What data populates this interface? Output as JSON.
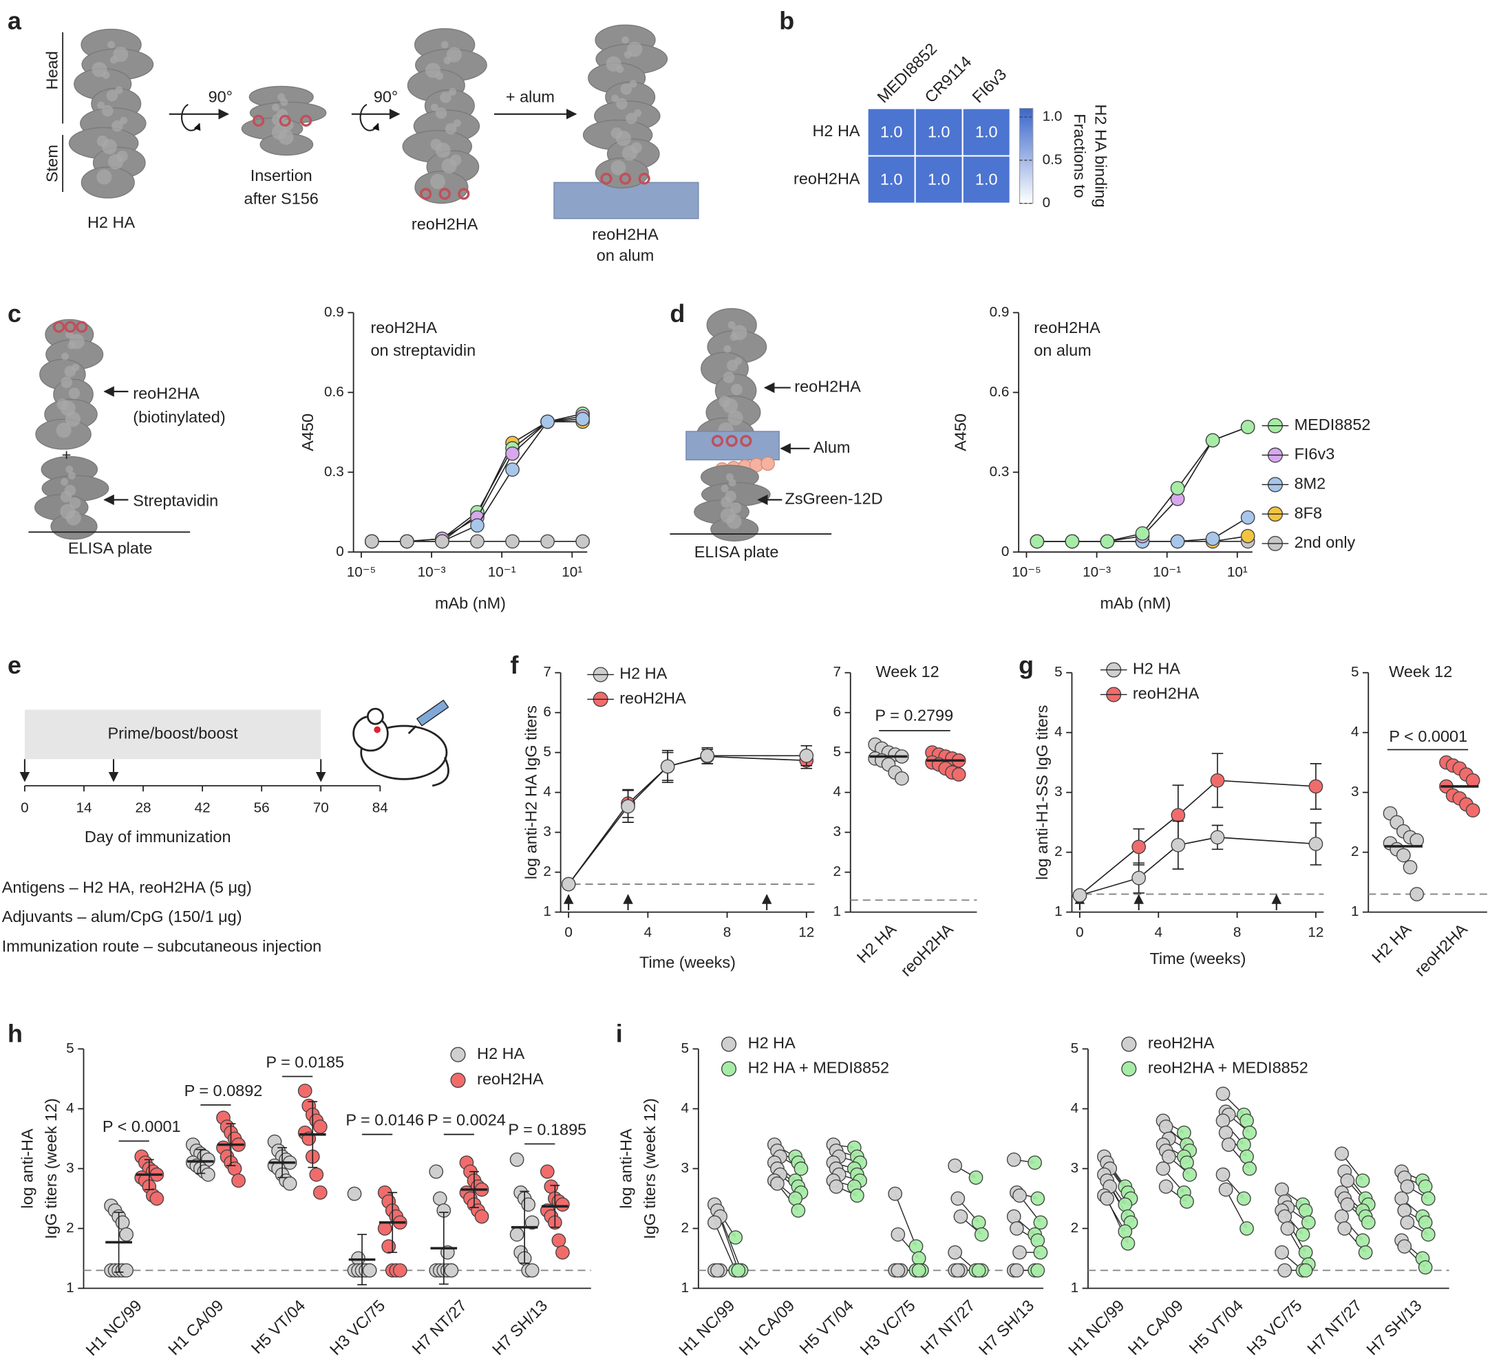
{
  "panel_labels": [
    "a",
    "b",
    "c",
    "d",
    "e",
    "f",
    "g",
    "h",
    "i"
  ],
  "panel_a": {
    "head": "Head",
    "stem": "Stem",
    "rotations": [
      "90°",
      "90°"
    ],
    "step": "+ alum",
    "captions": [
      [
        "H2 HA"
      ],
      [
        "Insertion",
        "after S156"
      ],
      [
        "reoH2HA"
      ],
      [
        "reoH2HA",
        "on alum"
      ]
    ]
  },
  "panel_c": {
    "protein": [
      "reoH2HA",
      "(biotinylated)"
    ],
    "plus": "+",
    "streptavidin": "Streptavidin",
    "plate": "ELISA plate"
  },
  "panel_d": {
    "protein": "reoH2HA",
    "alum": "Alum",
    "antibody": "ZsGreen-12D",
    "plate": "ELISA plate"
  },
  "panel_e": {
    "notes": [
      "Antigens – H2 HA, reoH2HA (5 μg)",
      "Adjuvants – alum/CpG (150/1 μg)",
      "Immunization route – subcutaneous injection"
    ]
  },
  "chart_data": [
    {
      "type": "heatmap",
      "columns": [
        "MEDI8852",
        "CR9114",
        "FI6v3"
      ],
      "rows": [
        "H2 HA",
        "reoH2HA"
      ],
      "values": [
        [
          1,
          1,
          1
        ],
        [
          1,
          1,
          1
        ]
      ],
      "value_labels": [
        [
          "1.0",
          "1.0",
          "1.0"
        ],
        [
          "1.0",
          "1.0",
          "1.0"
        ]
      ],
      "colors": [
        "#ffffff",
        "#3a66cc"
      ],
      "clim": [
        0,
        1.1
      ],
      "cticks": [
        0,
        0.5,
        {
          "value": 1,
          "label": "1.0"
        }
      ],
      "colorbar_label": [
        "Fractions to",
        "H2 HA binding"
      ]
    },
    {
      "type": "line",
      "xscale": "log",
      "annotation": [
        "reoH2HA",
        "on streptavidin"
      ],
      "xlabel": "mAb (nM)",
      "ylabel": "A450",
      "x": [
        2e-05,
        0.0002,
        0.002,
        0.02,
        0.2,
        2,
        20
      ],
      "xlim": [
        6e-06,
        27
      ],
      "xticks": [
        {
          "value": 1e-05,
          "label": "10⁻⁵"
        },
        {
          "value": 0.001,
          "label": "10⁻³"
        },
        {
          "value": 0.1,
          "label": "10⁻¹"
        },
        {
          "value": 10,
          "label": "10¹"
        }
      ],
      "ylim": [
        0,
        0.9
      ],
      "yticks": [
        0,
        0.3,
        0.6,
        0.9
      ],
      "series": [
        {
          "color": "#c8c8c8",
          "values": [
            0.04,
            0.04,
            0.04,
            0.04,
            0.04,
            0.04,
            0.04
          ]
        },
        {
          "color": "#a7c6ea",
          "values": [
            0.04,
            0.04,
            0.04,
            0.1,
            0.31,
            0.49,
            0.5
          ]
        },
        {
          "color": "#d7a8ee",
          "values": [
            0.04,
            0.04,
            0.05,
            0.13,
            0.37,
            0.49,
            0.51
          ]
        },
        {
          "color": "#a6eca6",
          "values": [
            0.04,
            0.04,
            0.05,
            0.15,
            0.39,
            0.49,
            0.52
          ]
        },
        {
          "color": "#f2c440",
          "values": [
            0.04,
            0.04,
            0.04,
            0.14,
            0.41,
            0.49,
            0.49
          ]
        }
      ]
    },
    {
      "type": "line",
      "xscale": "log",
      "annotation": [
        "reoH2HA",
        "on alum"
      ],
      "xlabel": "mAb (nM)",
      "ylabel": "A450",
      "legend": "right",
      "x": [
        2e-05,
        0.0002,
        0.002,
        0.02,
        0.2,
        2,
        20
      ],
      "xlim": [
        6e-06,
        27
      ],
      "xticks": [
        {
          "value": 1e-05,
          "label": "10⁻⁵"
        },
        {
          "value": 0.001,
          "label": "10⁻³"
        },
        {
          "value": 0.1,
          "label": "10⁻¹"
        },
        {
          "value": 10,
          "label": "10¹"
        }
      ],
      "ylim": [
        0,
        0.9
      ],
      "yticks": [
        0,
        0.3,
        0.6,
        0.9
      ],
      "series": [
        {
          "name": "MEDI8852",
          "color": "#a6eca6",
          "values": [
            0.04,
            0.04,
            0.04,
            0.07,
            0.24,
            0.42,
            0.47
          ]
        },
        {
          "name": "FI6v3",
          "color": "#d7a8ee",
          "values": [
            0.04,
            0.04,
            0.04,
            0.06,
            0.2,
            0.42,
            0.47
          ]
        },
        {
          "name": "8M2",
          "color": "#a7c6ea",
          "values": [
            0.04,
            0.04,
            0.04,
            0.04,
            0.04,
            0.05,
            0.13
          ]
        },
        {
          "name": "8F8",
          "color": "#f2c440",
          "values": [
            0.04,
            0.04,
            0.04,
            0.04,
            0.04,
            0.04,
            0.06
          ]
        },
        {
          "name": "2nd only",
          "color": "#c8c8c8",
          "values": [
            0.04,
            0.04,
            0.04,
            0.04,
            0.04,
            0.04,
            0.04
          ]
        }
      ]
    },
    {
      "type": "timeline",
      "band_label": "Prime/boost/boost",
      "xlabel": "Day of immunization",
      "xlim": [
        0,
        84
      ],
      "xticks": [
        0,
        14,
        28,
        42,
        56,
        70,
        84
      ],
      "band": [
        0,
        70
      ],
      "immunizations": [
        0,
        21,
        70
      ]
    },
    {
      "type": "line",
      "xlabel": "Time (weeks)",
      "ylabel": "log anti-H2 HA IgG titers",
      "legend": "upper left",
      "x": [
        0,
        3,
        5,
        7,
        12
      ],
      "xlim": [
        -0.4,
        12.4
      ],
      "xticks": [
        0,
        4,
        8,
        12
      ],
      "ylim": [
        1,
        7
      ],
      "yticks": [
        1,
        2,
        3,
        4,
        5,
        6,
        7
      ],
      "reference_line": 1.7,
      "immunizations": [
        0,
        3,
        10
      ],
      "series": [
        {
          "name": "H2 HA",
          "color": "#cfcfcf",
          "values": [
            1.7,
            3.65,
            4.65,
            4.92,
            4.92
          ],
          "errors": [
            0,
            0.4,
            0.4,
            0.2,
            0.25
          ]
        },
        {
          "name": "reoH2HA",
          "color": "#f26b6b",
          "values": [
            1.7,
            3.72,
            4.65,
            4.9,
            4.8
          ],
          "errors": [
            0,
            0.35,
            0.35,
            0.18,
            0.2
          ]
        }
      ]
    },
    {
      "type": "strip",
      "title": "Week 12",
      "categories": [
        "H2 HA",
        "reoH2HA"
      ],
      "colors": [
        "#cfcfcf",
        "#f26b6b"
      ],
      "values": [
        4.9,
        4.8
      ],
      "points": [
        [
          5.2,
          5.1,
          5.0,
          4.95,
          4.9,
          4.85,
          4.8,
          4.7,
          4.5,
          4.35
        ],
        [
          5.0,
          4.95,
          4.9,
          4.85,
          4.8,
          4.75,
          4.7,
          4.6,
          4.5,
          4.45
        ]
      ],
      "ylim": [
        1,
        7
      ],
      "yticks": [
        1,
        2,
        3,
        4,
        5,
        6,
        7
      ],
      "reference_line": 1.3,
      "annotation": "P = 0.2799"
    },
    {
      "type": "line",
      "xlabel": "Time (weeks)",
      "ylabel": "log anti-H1-SS IgG titers",
      "legend": "upper left",
      "x": [
        0,
        3,
        5,
        7,
        12
      ],
      "xlim": [
        -0.4,
        12.4
      ],
      "xticks": [
        0,
        4,
        8,
        12
      ],
      "ylim": [
        1,
        5
      ],
      "yticks": [
        1,
        2,
        3,
        4,
        5
      ],
      "reference_line": 1.3,
      "immunizations": [
        0,
        3,
        10
      ],
      "series": [
        {
          "name": "H2 HA",
          "color": "#cfcfcf",
          "values": [
            1.28,
            1.57,
            2.12,
            2.25,
            2.14
          ],
          "errors": [
            0,
            0.25,
            0.4,
            0.2,
            0.35
          ]
        },
        {
          "name": "reoH2HA",
          "color": "#f26b6b",
          "values": [
            1.28,
            2.09,
            2.62,
            3.2,
            3.1
          ],
          "errors": [
            0,
            0.3,
            0.5,
            0.45,
            0.38
          ]
        }
      ]
    },
    {
      "type": "strip",
      "title": "Week 12",
      "categories": [
        "H2 HA",
        "reoH2HA"
      ],
      "colors": [
        "#cfcfcf",
        "#f26b6b"
      ],
      "values": [
        2.1,
        3.1
      ],
      "points": [
        [
          2.65,
          2.5,
          2.35,
          2.25,
          2.2,
          2.15,
          2.05,
          1.95,
          1.75,
          1.3
        ],
        [
          3.5,
          3.45,
          3.4,
          3.3,
          3.2,
          3.1,
          2.95,
          2.9,
          2.8,
          2.7
        ]
      ],
      "ylim": [
        1,
        5
      ],
      "yticks": [
        1,
        2,
        3,
        4,
        5
      ],
      "reference_line": 1.3,
      "annotation": "P < 0.0001"
    },
    {
      "type": "strip",
      "ylabel": [
        "log anti-HA",
        "IgG titers (week 12)"
      ],
      "legend": "upper right",
      "categories": [
        "H1 NC/99",
        "H1 CA/09",
        "H5 VT/04",
        "H3 VC/75",
        "H7 NT/27",
        "H7 SH/13"
      ],
      "ylim": [
        1,
        5
      ],
      "yticks": [
        1,
        2,
        3,
        4,
        5
      ],
      "reference_line": 1.3,
      "annotations": [
        "P < 0.0001",
        "P = 0.0892",
        "P = 0.0185",
        "P = 0.0146",
        "P = 0.0024",
        "P = 0.1895"
      ],
      "series": [
        {
          "name": "H2 HA",
          "color": "#cfcfcf",
          "values": [
            1.77,
            3.12,
            3.1,
            1.48,
            1.67,
            2.02
          ],
          "errors": [
            0.5,
            0.2,
            0.25,
            0.42,
            0.6,
            0.6
          ],
          "points": [
            [
              2.38,
              2.3,
              2.2,
              2.1,
              1.9,
              1.3,
              1.3,
              1.3,
              1.3,
              1.3
            ],
            [
              3.4,
              3.3,
              3.25,
              3.2,
              3.15,
              3.1,
              3.05,
              3.0,
              2.95,
              2.9
            ],
            [
              3.45,
              3.3,
              3.2,
              3.15,
              3.1,
              3.05,
              3.0,
              2.9,
              2.8,
              2.75
            ],
            [
              2.58,
              1.5,
              1.3,
              1.3,
              1.3,
              1.3,
              1.3,
              1.3,
              1.3,
              1.3
            ],
            [
              2.95,
              2.5,
              2.3,
              1.6,
              1.3,
              1.3,
              1.3,
              1.3,
              1.3,
              1.3
            ],
            [
              3.15,
              2.6,
              2.5,
              2.4,
              2.1,
              1.9,
              1.6,
              1.5,
              1.3,
              1.3
            ]
          ]
        },
        {
          "name": "reoH2HA",
          "color": "#f26b6b",
          "values": [
            2.9,
            3.4,
            3.57,
            2.1,
            2.65,
            2.37
          ],
          "errors": [
            0.25,
            0.35,
            0.55,
            0.5,
            0.3,
            0.35
          ],
          "points": [
            [
              3.2,
              3.1,
              3.0,
              2.95,
              2.9,
              2.85,
              2.8,
              2.7,
              2.55,
              2.5
            ],
            [
              3.85,
              3.7,
              3.6,
              3.5,
              3.4,
              3.35,
              3.2,
              3.1,
              3.0,
              2.8
            ],
            [
              4.3,
              4.05,
              3.9,
              3.8,
              3.7,
              3.6,
              3.5,
              3.2,
              2.9,
              2.6
            ],
            [
              2.6,
              2.45,
              2.3,
              2.2,
              2.1,
              2.0,
              1.7,
              1.3,
              1.3,
              1.3
            ],
            [
              3.1,
              2.95,
              2.8,
              2.7,
              2.65,
              2.6,
              2.5,
              2.4,
              2.3,
              2.2
            ],
            [
              2.95,
              2.7,
              2.5,
              2.45,
              2.4,
              2.3,
              2.2,
              2.1,
              1.8,
              1.6
            ]
          ]
        }
      ]
    },
    {
      "type": "paired",
      "ylabel": [
        "log anti-HA",
        "IgG titers (week 12)"
      ],
      "legend": "upper left",
      "categories": [
        "H1 NC/99",
        "H1 CA/09",
        "H5 VT/04",
        "H3 VC/75",
        "H7 NT/27",
        "H7 SH/13"
      ],
      "ylim": [
        1,
        5
      ],
      "yticks": [
        1,
        2,
        3,
        4,
        5
      ],
      "reference_line": 1.3,
      "series": [
        {
          "name": "H2 HA",
          "color": "#cfcfcf",
          "values": [
            [
              2.4,
              2.3,
              2.2,
              2.1,
              1.3,
              1.3,
              1.3,
              1.3
            ],
            [
              3.4,
              3.3,
              3.2,
              3.1,
              3.0,
              2.9,
              2.8,
              2.75
            ],
            [
              3.4,
              3.3,
              3.2,
              3.1,
              3.0,
              2.9,
              2.8,
              2.7
            ],
            [
              2.58,
              1.9,
              1.3,
              1.3,
              1.3,
              1.3,
              1.3,
              1.3
            ],
            [
              3.05,
              2.5,
              2.2,
              1.6,
              1.3,
              1.3,
              1.3,
              1.3
            ],
            [
              3.15,
              2.6,
              2.55,
              2.2,
              2.0,
              1.6,
              1.3,
              1.3
            ]
          ]
        },
        {
          "name": "H2 HA + MEDI8852",
          "color": "#a6eca6",
          "values": [
            [
              1.85,
              1.3,
              1.3,
              1.3,
              1.3,
              1.3,
              1.3,
              1.3
            ],
            [
              3.2,
              3.1,
              3.0,
              2.8,
              2.7,
              2.6,
              2.5,
              2.3
            ],
            [
              3.35,
              3.2,
              3.1,
              3.0,
              2.9,
              2.8,
              2.7,
              2.55
            ],
            [
              1.7,
              1.5,
              1.3,
              1.3,
              1.3,
              1.3,
              1.3,
              1.3
            ],
            [
              2.85,
              2.1,
              1.9,
              1.3,
              1.3,
              1.3,
              1.3,
              1.3
            ],
            [
              3.1,
              2.5,
              2.1,
              1.9,
              1.8,
              1.6,
              1.3,
              1.3
            ]
          ]
        }
      ]
    },
    {
      "type": "paired",
      "legend": "upper left",
      "categories": [
        "H1 NC/99",
        "H1 CA/09",
        "H5 VT/04",
        "H3 VC/75",
        "H7 NT/27",
        "H7 SH/13"
      ],
      "ylim": [
        1,
        5
      ],
      "yticks": [
        1,
        2,
        3,
        4,
        5
      ],
      "reference_line": 1.3,
      "series": [
        {
          "name": "reoH2HA",
          "color": "#cfcfcf",
          "values": [
            [
              3.2,
              3.1,
              3.0,
              2.9,
              2.8,
              2.7,
              2.55,
              2.5
            ],
            [
              3.8,
              3.7,
              3.5,
              3.4,
              3.3,
              3.2,
              3.0,
              2.7
            ],
            [
              4.25,
              3.95,
              3.9,
              3.8,
              3.6,
              3.4,
              2.9,
              2.65
            ],
            [
              2.65,
              2.45,
              2.35,
              2.3,
              2.2,
              2.0,
              1.6,
              1.3
            ],
            [
              3.25,
              2.95,
              2.8,
              2.6,
              2.5,
              2.4,
              2.2,
              2.0
            ],
            [
              2.95,
              2.85,
              2.7,
              2.5,
              2.3,
              2.1,
              1.8,
              1.7
            ]
          ]
        },
        {
          "name": "reoH2HA + MEDI8852",
          "color": "#a6eca6",
          "values": [
            [
              2.7,
              2.6,
              2.5,
              2.4,
              2.2,
              2.1,
              1.95,
              1.75
            ],
            [
              3.6,
              3.4,
              3.3,
              3.2,
              3.1,
              2.9,
              2.6,
              2.45
            ],
            [
              3.9,
              3.8,
              3.6,
              3.4,
              3.2,
              3.0,
              2.5,
              2.0
            ],
            [
              2.4,
              2.3,
              2.1,
              1.9,
              1.6,
              1.4,
              1.3,
              1.3
            ],
            [
              2.8,
              2.5,
              2.4,
              2.3,
              2.2,
              2.1,
              1.8,
              1.6
            ],
            [
              2.8,
              2.7,
              2.5,
              2.2,
              2.1,
              1.9,
              1.5,
              1.35
            ]
          ]
        }
      ]
    }
  ]
}
